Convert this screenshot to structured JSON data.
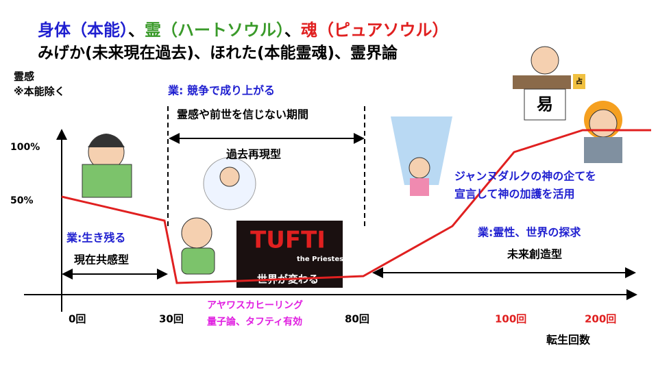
{
  "header": {
    "title_parts": [
      "身体（本能）",
      "、",
      "霊（ハートソウル）",
      "、",
      "魂（ピュアソウル）"
    ],
    "subtitle": "みげか(未来現在過去)、ほれた(本能霊魂)、霊界論"
  },
  "y_axis": {
    "label": "霊感",
    "note": "※本能除く",
    "ticks": [
      "100%",
      "50%"
    ]
  },
  "x_axis": {
    "label": "転生回数",
    "ticks": [
      "0回",
      "30回",
      "80回",
      "100回",
      "200回"
    ]
  },
  "phases": [
    {
      "karma": "業:生き残る",
      "type": "現在共感型"
    },
    {
      "karma": "業: 競争で成り上がる",
      "note": "霊感や前世を信じない期間",
      "type": "過去再現型"
    },
    {
      "karma": "業:霊性、世界の探求",
      "type": "未来創造型"
    }
  ],
  "annotations": {
    "turning_point": [
      "アヤワスカヒーリング",
      "量子論、タフティ有効"
    ],
    "jeanne": [
      "ジャンヌダルクの神の企てを",
      "宣言して神の加護を活用"
    ]
  },
  "book": {
    "title": "TUFTI",
    "subtitle": "the Priestess",
    "tagline": "世界が変わる"
  },
  "sign": {
    "large": "易",
    "small": "占"
  }
}
